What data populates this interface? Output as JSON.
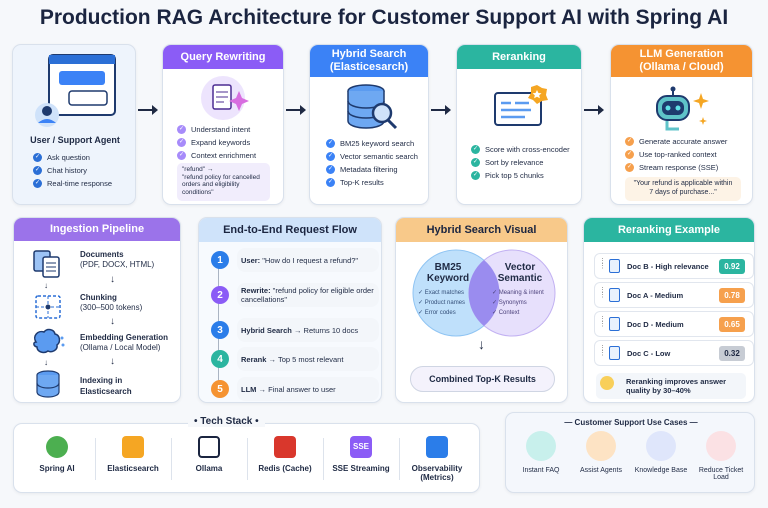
{
  "title": "Production RAG Architecture for Customer Support AI with Spring AI",
  "user_card": {
    "title": "User / Support Agent",
    "items": [
      "Ask question",
      "Chat history",
      "Real-time response"
    ]
  },
  "query_rewriting": {
    "title": "Query Rewriting",
    "items": [
      "Understand intent",
      "Expand keywords",
      "Context enrichment"
    ],
    "example_from": "\"refund\"  →",
    "example_to": "\"refund policy for cancelled orders and eligibility conditions\""
  },
  "hybrid_search": {
    "title": "Hybrid Search (Elasticesarch)",
    "items": [
      "BM25 keyword search",
      "Vector semantic search",
      "Metadata filtering",
      "Top-K results"
    ]
  },
  "reranking": {
    "title": "Reranking",
    "items": [
      "Score with cross-encoder",
      "Sort by relevance",
      "Pick top 5 chunks"
    ]
  },
  "llm": {
    "title": "LLM Generation (Ollama / Cloud)",
    "items": [
      "Generate accurate answer",
      "Use top-ranked context",
      "Stream response (SSE)"
    ],
    "quote": "\"Your refund is applicable within 7 days of purchase...\""
  },
  "ingestion": {
    "title": "Ingestion Pipeline",
    "steps": [
      {
        "title": "Documents",
        "sub": "(PDF, DOCX, HTML)"
      },
      {
        "title": "Chunking",
        "sub": "(300–500 tokens)"
      },
      {
        "title": "Embedding Generation",
        "sub": "(Ollama / Local Model)"
      },
      {
        "title": "Indexing in Elasticsearch",
        "sub": ""
      }
    ]
  },
  "flow": {
    "title": "End-to-End Request Flow",
    "steps": [
      {
        "n": "1",
        "bold": "User:",
        "text": " \"How do I request a refund?\""
      },
      {
        "n": "2",
        "bold": "Rewrite:",
        "text": " \"refund policy for eligible order cancellations\""
      },
      {
        "n": "3",
        "bold": "Hybrid Search",
        "text": " → Returns 10 docs"
      },
      {
        "n": "4",
        "bold": "Rerank",
        "text": " → Top 5 most relevant"
      },
      {
        "n": "5",
        "bold": "LLM",
        "text": " → Final answer to user"
      }
    ]
  },
  "hybrid_visual": {
    "title": "Hybrid Search Visual",
    "left": {
      "title": "BM25 Keyword",
      "items": [
        "Exact matches",
        "Product names",
        "Error codes"
      ]
    },
    "right": {
      "title": "Vector Semantic",
      "items": [
        "Meaning & intent",
        "Synonyms",
        "Context"
      ]
    },
    "result": "Combined Top-K Results"
  },
  "rerank_example": {
    "title": "Reranking Example",
    "docs": [
      {
        "label": "Doc B - High relevance",
        "score": "0.92",
        "color": "#2bb5a0"
      },
      {
        "label": "Doc A - Medium",
        "score": "0.78",
        "color": "#f6a04d"
      },
      {
        "label": "Doc D - Medium",
        "score": "0.65",
        "color": "#f6a04d"
      },
      {
        "label": "Doc C - Low",
        "score": "0.32",
        "color": "#c7ccd4"
      }
    ],
    "note": "Reranking improves answer quality by 30–40%"
  },
  "tech_stack": {
    "title": "Tech Stack",
    "items": [
      "Spring AI",
      "Elasticsearch",
      "Ollama",
      "Redis (Cache)",
      "SSE Streaming",
      "Observability (Metrics)"
    ],
    "sse_logo": "SSE"
  },
  "use_cases": {
    "title": "— Customer Support Use Cases —",
    "items": [
      "Instant FAQ",
      "Assist Agents",
      "Knowledge Base",
      "Reduce Ticket Load"
    ]
  },
  "colors": {
    "purple": "#8b5cf6",
    "blue": "#3b82f6",
    "teal": "#2bb5a0",
    "orange": "#f59332",
    "navy": "#1b2540"
  }
}
